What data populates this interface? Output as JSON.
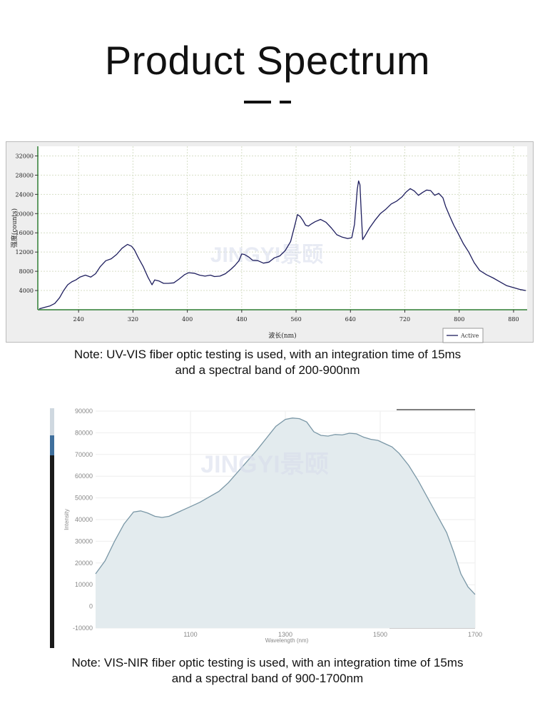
{
  "page": {
    "title": "Product Spectrum",
    "watermark": "JINGYI景颐"
  },
  "notes": [
    {
      "line1": "Note: UV-VIS fiber optic testing is used, with an integration time of 15ms",
      "line2": "and a spectral band of 200-900nm"
    },
    {
      "line1": "Note: VIS-NIR fiber optic testing is used, with an integration time of 15ms",
      "line2": "and a spectral band of 900-1700nm"
    }
  ],
  "chart_data": [
    {
      "type": "line",
      "xlabel": "波长(nm)",
      "ylabel": "强度(counts)",
      "xlim": [
        180,
        900
      ],
      "ylim": [
        0,
        34000
      ],
      "xticks": [
        240,
        320,
        400,
        480,
        560,
        640,
        720,
        800,
        880
      ],
      "yticks": [
        4000,
        8000,
        12000,
        16000,
        20000,
        24000,
        28000,
        32000
      ],
      "grid": true,
      "legend": {
        "position": "bottom-right",
        "entries": [
          "Active"
        ]
      },
      "colors": {
        "line": "#1e1e5e",
        "plot_bg": "#ffffff",
        "grid": "#d6dec6",
        "axis": "#2e7d32",
        "panel_bg": "#eeeeee"
      },
      "series": [
        {
          "name": "Active",
          "x": [
            182,
            190,
            198,
            205,
            212,
            218,
            224,
            230,
            236,
            242,
            250,
            258,
            265,
            272,
            280,
            288,
            296,
            304,
            312,
            318,
            322,
            328,
            335,
            342,
            348,
            352,
            358,
            365,
            372,
            380,
            388,
            396,
            402,
            410,
            418,
            426,
            434,
            440,
            448,
            456,
            464,
            470,
            476,
            480,
            484,
            490,
            496,
            504,
            512,
            520,
            528,
            536,
            544,
            552,
            558,
            562,
            566,
            570,
            574,
            578,
            582,
            588,
            596,
            604,
            612,
            620,
            628,
            636,
            642,
            646,
            650,
            652,
            654,
            656,
            658,
            662,
            668,
            676,
            684,
            692,
            700,
            708,
            716,
            722,
            728,
            734,
            740,
            746,
            752,
            758,
            764,
            770,
            776,
            780,
            786,
            792,
            798,
            806,
            814,
            822,
            830,
            840,
            850,
            860,
            870,
            880,
            890,
            898
          ],
          "y": [
            200,
            500,
            800,
            1300,
            2500,
            4000,
            5200,
            5800,
            6200,
            6800,
            7200,
            6800,
            7500,
            9000,
            10200,
            10600,
            11500,
            12800,
            13600,
            13200,
            12500,
            10800,
            9000,
            6800,
            5200,
            6200,
            6000,
            5500,
            5500,
            5600,
            6400,
            7300,
            7700,
            7600,
            7200,
            7000,
            7200,
            6900,
            7000,
            7500,
            8400,
            9200,
            10200,
            11600,
            11500,
            11000,
            10300,
            10200,
            9700,
            9900,
            10800,
            11200,
            12300,
            14200,
            17500,
            19800,
            19400,
            18600,
            17600,
            17400,
            17800,
            18300,
            18800,
            18200,
            17000,
            15600,
            15100,
            14800,
            15000,
            17800,
            25000,
            26800,
            26000,
            20000,
            14600,
            15500,
            17000,
            18600,
            20000,
            20900,
            22000,
            22600,
            23500,
            24500,
            25200,
            24700,
            23800,
            24400,
            24900,
            24800,
            23800,
            24200,
            23300,
            21500,
            19500,
            17600,
            16000,
            13800,
            12000,
            9800,
            8200,
            7300,
            6600,
            5800,
            5000,
            4600,
            4200,
            4000
          ]
        }
      ]
    },
    {
      "type": "area",
      "xlabel": "Wavelength (nm)",
      "ylabel": "Intensity",
      "xlim": [
        900,
        1700
      ],
      "ylim": [
        -10000,
        90000
      ],
      "xticks": [
        1100,
        1300,
        1500,
        1700
      ],
      "yticks": [
        -10000,
        0,
        10000,
        20000,
        30000,
        40000,
        50000,
        60000,
        70000,
        80000,
        90000
      ],
      "grid": true,
      "colors": {
        "line": "#7a97a6",
        "fill": "#e3ebee",
        "grid": "#eeeeee",
        "text": "#888888"
      },
      "series": [
        {
          "x": [
            900,
            920,
            940,
            960,
            980,
            995,
            1010,
            1025,
            1040,
            1055,
            1070,
            1085,
            1100,
            1120,
            1140,
            1160,
            1180,
            1200,
            1220,
            1240,
            1260,
            1280,
            1300,
            1315,
            1330,
            1345,
            1360,
            1375,
            1390,
            1405,
            1420,
            1435,
            1450,
            1465,
            1480,
            1495,
            1510,
            1525,
            1540,
            1560,
            1580,
            1600,
            1620,
            1640,
            1655,
            1670,
            1685,
            1700
          ],
          "y": [
            15000,
            21000,
            30000,
            38000,
            43500,
            44000,
            43000,
            41500,
            41000,
            41500,
            43000,
            44500,
            46000,
            48000,
            50500,
            53000,
            57000,
            62000,
            67000,
            72000,
            77500,
            83000,
            86200,
            86800,
            86500,
            85000,
            80500,
            78800,
            78500,
            79200,
            79000,
            79800,
            79500,
            78000,
            77000,
            76500,
            75000,
            73500,
            70500,
            65000,
            58000,
            50000,
            42000,
            34000,
            25000,
            15000,
            9000,
            5500
          ]
        }
      ]
    }
  ]
}
